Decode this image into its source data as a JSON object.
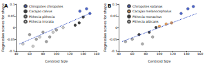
{
  "chart_data": [
    {
      "type": "scatter",
      "title": "A",
      "x_label": "Centroid Size",
      "y_label": "Regression scores for shape",
      "xlim": [
        40,
        160
      ],
      "xticks": [
        40,
        60,
        80,
        100,
        120,
        140,
        160
      ],
      "ylim": [
        -0.1,
        0.1
      ],
      "yticks": [
        -0.1,
        -0.05,
        0,
        0.05,
        0.1
      ],
      "grid": false,
      "legend": "top",
      "series": [
        {
          "name": "Chiropotes chiropotes",
          "color": "#1f3fbf",
          "x": [
            135,
            145,
            150
          ],
          "values": [
            0.07,
            0.08,
            0.06
          ]
        },
        {
          "name": "Cacajao calvus",
          "color": "#111111",
          "x": [
            128,
            134,
            140
          ],
          "values": [
            0.01,
            0.02,
            0.045
          ]
        },
        {
          "name": "Pithecia pithecia",
          "color": "#888888",
          "x": [
            60,
            70,
            80,
            90,
            100,
            85
          ],
          "values": [
            -0.03,
            -0.05,
            -0.02,
            -0.04,
            -0.01,
            -0.06
          ]
        },
        {
          "name": "Pithecia irrorata",
          "color": "#bbbbbb",
          "x": [
            50,
            65,
            75,
            95,
            110
          ],
          "values": [
            -0.07,
            -0.08,
            -0.04,
            -0.02,
            0.0
          ]
        },
        {
          "type": "line",
          "color": "#1f3fbf",
          "line_style": "dotted",
          "x": [
            45,
            150
          ],
          "values": [
            -0.07,
            0.06
          ]
        }
      ]
    },
    {
      "type": "scatter",
      "title": "B",
      "x_label": "Centroid Size",
      "y_label": "Regression scores for shape",
      "xlim": [
        40,
        160
      ],
      "xticks": [
        40,
        60,
        80,
        100,
        120,
        140,
        160
      ],
      "ylim": [
        -0.1,
        0.1
      ],
      "yticks": [
        -0.1,
        -0.05,
        0,
        0.05,
        0.1
      ],
      "grid": false,
      "legend": "top",
      "series": [
        {
          "name": "Chiropotes satanas",
          "color": "#1f3fbf",
          "x": [
            132,
            142,
            150
          ],
          "values": [
            0.06,
            0.08,
            0.09
          ]
        },
        {
          "name": "Cacajao melanocephalus",
          "color": "#e8892a",
          "x": [
            100,
            110,
            118
          ],
          "values": [
            0.005,
            0.015,
            0.02
          ]
        },
        {
          "name": "Pithecia monachus",
          "color": "#111111",
          "x": [
            70,
            85,
            95
          ],
          "values": [
            -0.03,
            -0.02,
            0.0
          ]
        },
        {
          "name": "Pithecia albicans",
          "color": "#999999",
          "x": [
            50,
            60,
            75,
            90
          ],
          "values": [
            -0.06,
            -0.05,
            -0.07,
            -0.04
          ]
        },
        {
          "type": "line",
          "color": "#1f3fbf",
          "line_style": "dotted",
          "x": [
            45,
            155
          ],
          "values": [
            -0.06,
            0.06
          ]
        }
      ]
    }
  ]
}
